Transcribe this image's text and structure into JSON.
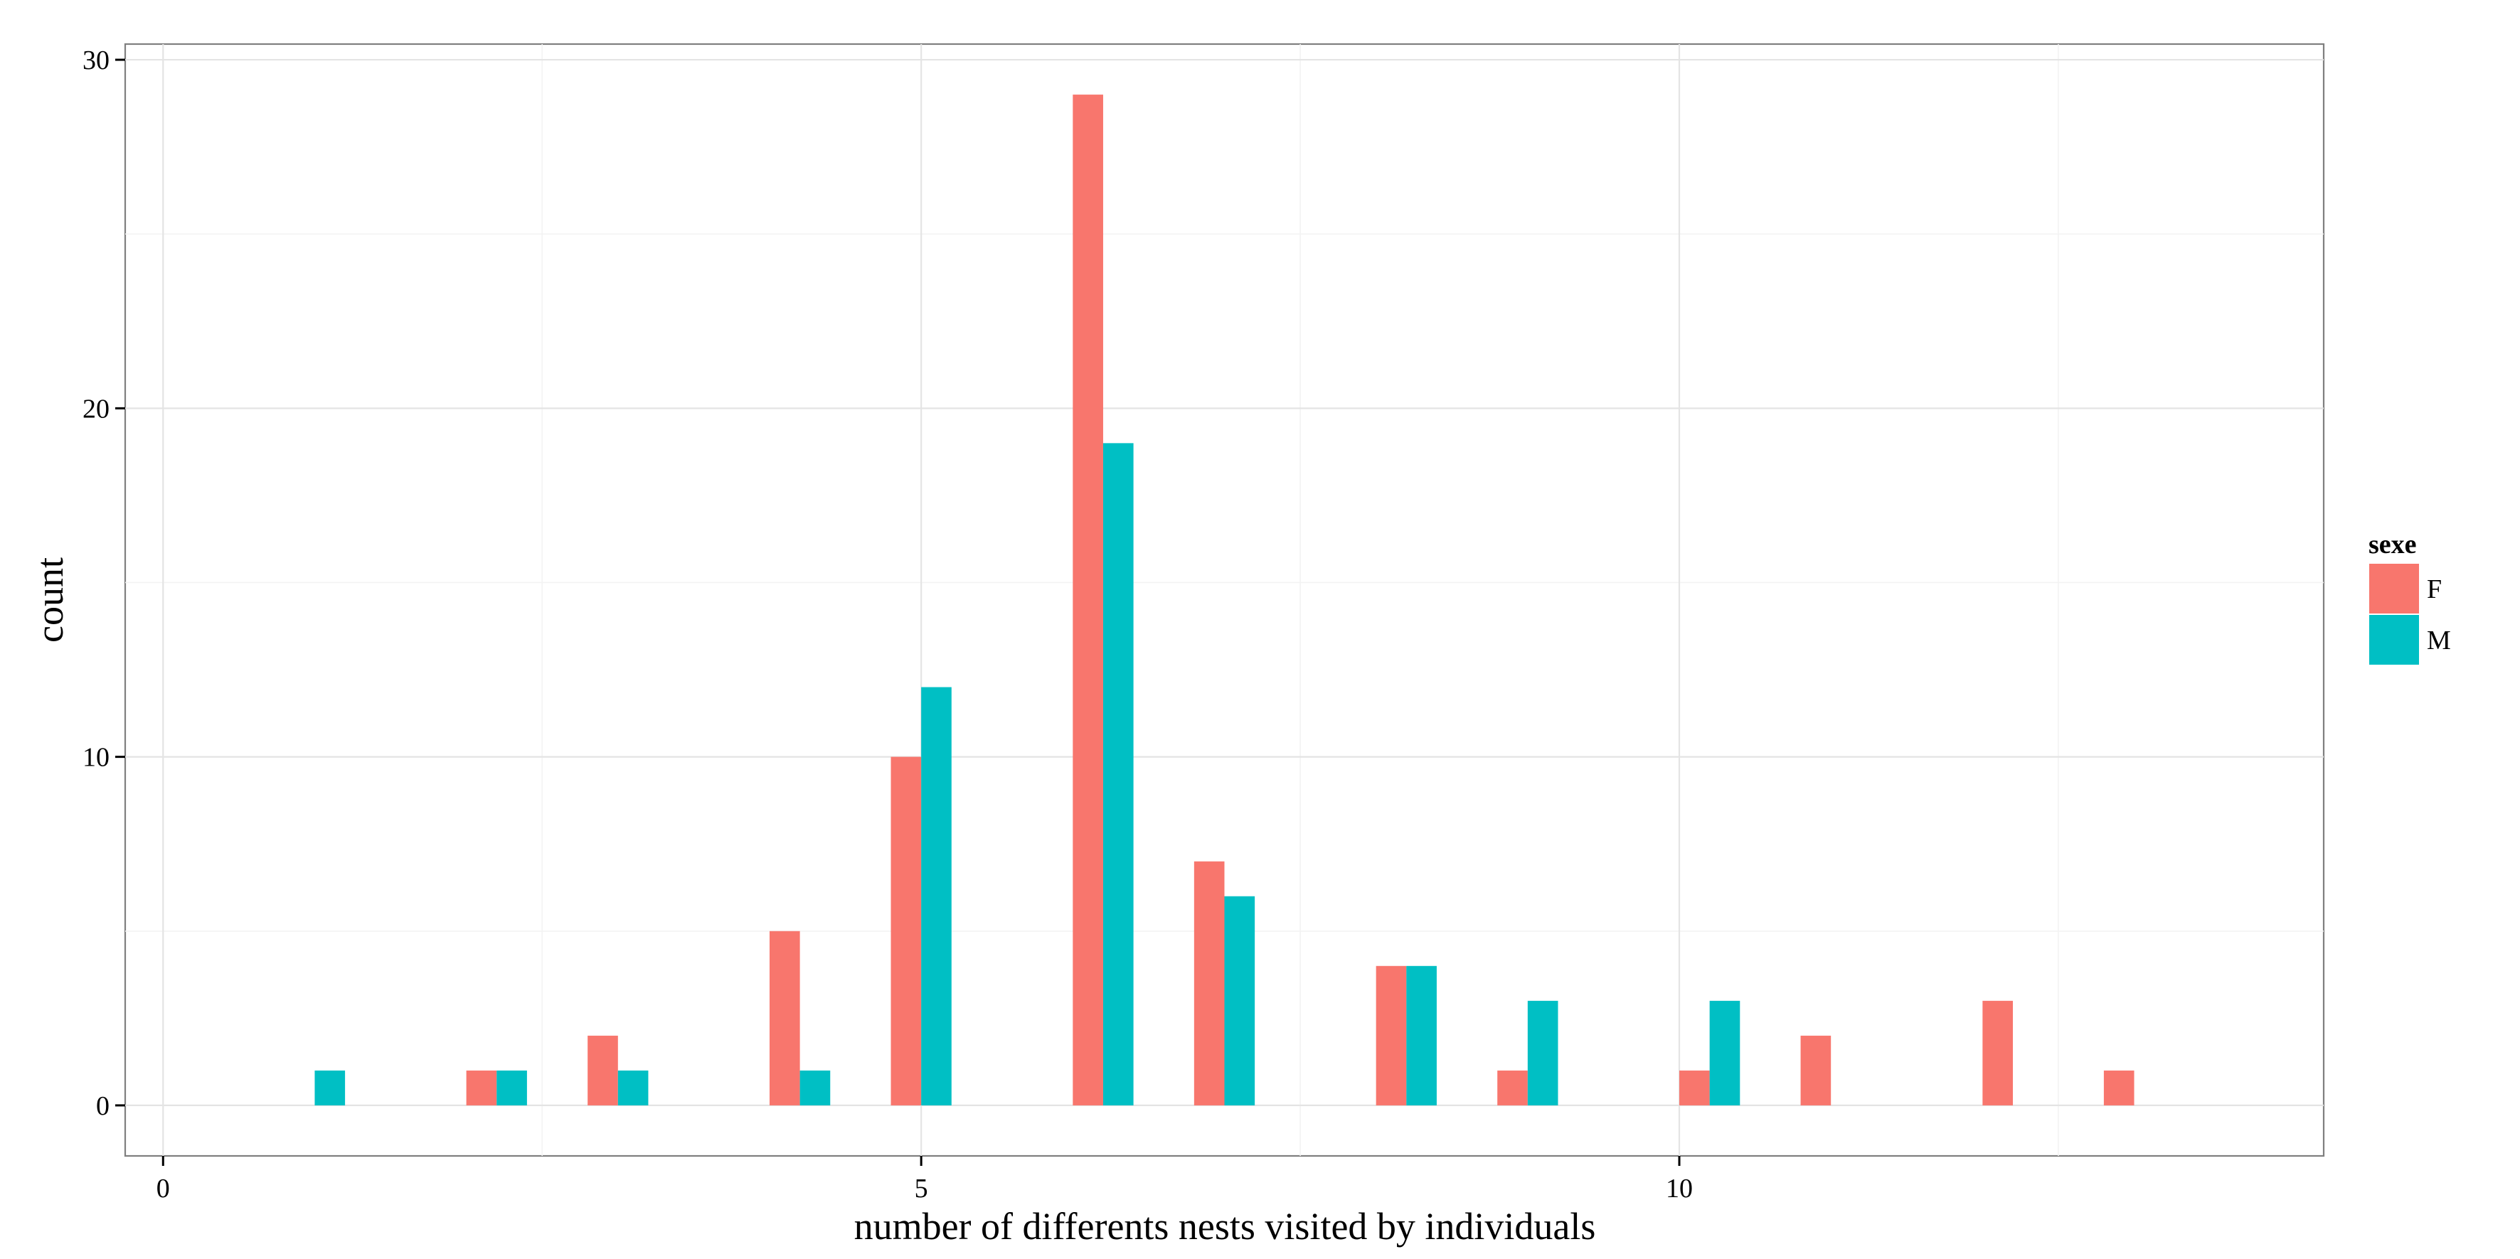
{
  "chart_data": {
    "type": "bar",
    "title": "",
    "xlabel": "number of differents nests visited by individuals",
    "ylabel": "count",
    "xlim": [
      -0.25,
      14.25
    ],
    "ylim": [
      -1.45,
      30.45
    ],
    "x_ticks": [
      0,
      5,
      10
    ],
    "y_ticks": [
      0,
      10,
      20,
      30
    ],
    "grid": true,
    "legend": {
      "title": "sexe",
      "position": "right"
    },
    "bar_width": 0.2,
    "series": [
      {
        "name": "F",
        "color": "#F8766D",
        "points": [
          {
            "x": 2.1,
            "y": 1
          },
          {
            "x": 2.9,
            "y": 2
          },
          {
            "x": 4.1,
            "y": 5
          },
          {
            "x": 4.9,
            "y": 10
          },
          {
            "x": 6.1,
            "y": 29
          },
          {
            "x": 6.9,
            "y": 7
          },
          {
            "x": 8.1,
            "y": 4
          },
          {
            "x": 8.9,
            "y": 1
          },
          {
            "x": 10.1,
            "y": 1
          },
          {
            "x": 10.9,
            "y": 2
          },
          {
            "x": 12.1,
            "y": 3
          },
          {
            "x": 12.9,
            "y": 1
          }
        ]
      },
      {
        "name": "M",
        "color": "#00BFC4",
        "points": [
          {
            "x": 1.1,
            "y": 1
          },
          {
            "x": 2.3,
            "y": 1
          },
          {
            "x": 3.1,
            "y": 1
          },
          {
            "x": 4.3,
            "y": 1
          },
          {
            "x": 5.1,
            "y": 12
          },
          {
            "x": 6.3,
            "y": 19
          },
          {
            "x": 7.1,
            "y": 6
          },
          {
            "x": 8.3,
            "y": 4
          },
          {
            "x": 9.1,
            "y": 3
          },
          {
            "x": 10.3,
            "y": 3
          }
        ]
      }
    ]
  }
}
